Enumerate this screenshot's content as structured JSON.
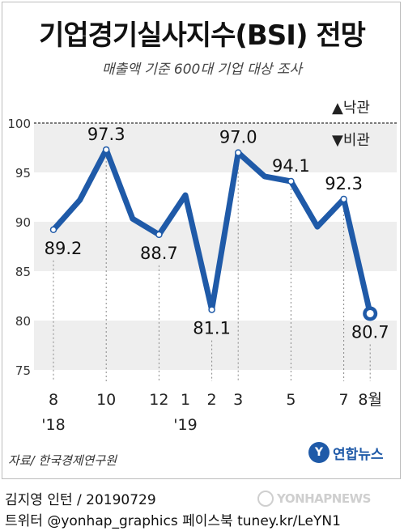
{
  "header": {
    "title": "기업경기실사지수(BSI) 전망",
    "subtitle": "매출액 기준 600대 기업 대상 조사"
  },
  "legend": {
    "optimism": "▲낙관",
    "pessimism": "▼비관"
  },
  "footer": {
    "source": "자료/ 한국경제연구원",
    "logo_text": "연합뉴스",
    "byline": "김지영 인턴 / 20190729",
    "social": "트위터 @yonhap_graphics  페이스북 tuney.kr/LeYN1",
    "watermark": "YONHAPNEWS"
  },
  "colors": {
    "line": "#1f5aa8",
    "band": "#eeeeee"
  },
  "chart_data": {
    "type": "line",
    "y_ticks": [
      "100",
      "95",
      "90",
      "85",
      "80",
      "75"
    ],
    "ylim": [
      75,
      100
    ],
    "baseline": 100,
    "x_labels": [
      {
        "index": 0,
        "label": "8"
      },
      {
        "index": 2,
        "label": "10"
      },
      {
        "index": 4,
        "label": "12"
      },
      {
        "index": 5,
        "label": "1"
      },
      {
        "index": 6,
        "label": "2"
      },
      {
        "index": 7,
        "label": "3"
      },
      {
        "index": 9,
        "label": "5"
      },
      {
        "index": 11,
        "label": "7"
      },
      {
        "index": 12,
        "label": "8월"
      }
    ],
    "year_labels": [
      {
        "index": 0,
        "label": "'18"
      },
      {
        "index": 5,
        "label": "'19"
      }
    ],
    "values": [
      89.2,
      92.2,
      97.3,
      90.3,
      88.7,
      92.7,
      81.1,
      97.0,
      94.6,
      94.1,
      89.5,
      92.3,
      80.7
    ],
    "data_labels": [
      {
        "index": 0,
        "text": "89.2",
        "pos": "below"
      },
      {
        "index": 2,
        "text": "97.3",
        "pos": "above"
      },
      {
        "index": 4,
        "text": "88.7",
        "pos": "below"
      },
      {
        "index": 6,
        "text": "81.1",
        "pos": "below"
      },
      {
        "index": 7,
        "text": "97.0",
        "pos": "above"
      },
      {
        "index": 9,
        "text": "94.1",
        "pos": "above"
      },
      {
        "index": 11,
        "text": "92.3",
        "pos": "above"
      },
      {
        "index": 12,
        "text": "80.7",
        "pos": "below"
      }
    ]
  }
}
